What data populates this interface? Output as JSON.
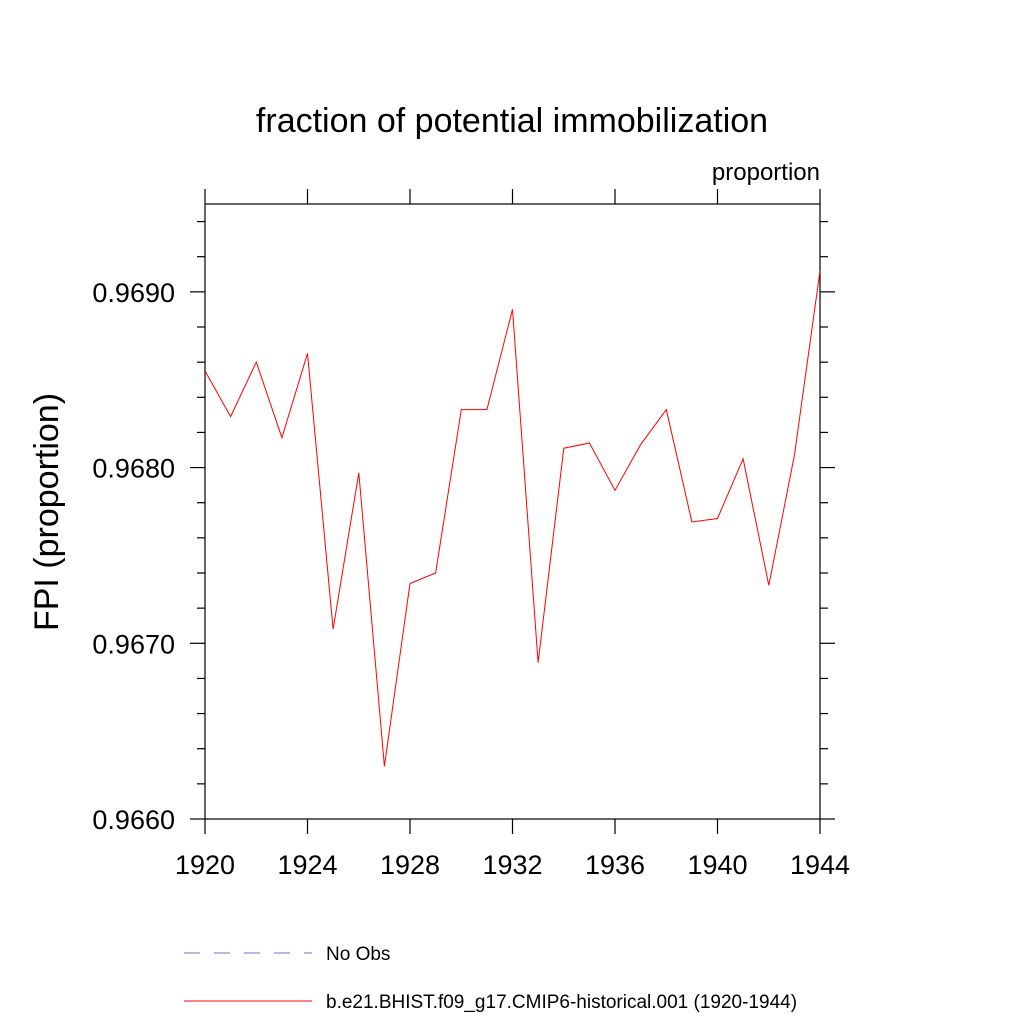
{
  "chart_data": {
    "type": "line",
    "title": "fraction of potential immobilization",
    "units_label": "proportion",
    "ylabel": "FPI  (proportion)",
    "xlabel": "",
    "xlim": [
      1920,
      1944
    ],
    "ylim": [
      0.966,
      0.9695
    ],
    "x_ticks": [
      1920,
      1924,
      1928,
      1932,
      1936,
      1940,
      1944
    ],
    "x_tick_labels": [
      "1920",
      "1924",
      "1928",
      "1932",
      "1936",
      "1940",
      "1944"
    ],
    "y_ticks": [
      0.966,
      0.967,
      0.968,
      0.969
    ],
    "y_tick_labels": [
      "0.9660",
      "0.9670",
      "0.9680",
      "0.9690"
    ],
    "grid": false,
    "legend_position": "bottom",
    "series": [
      {
        "name": "b.e21.BHIST.f09_g17.CMIP6-historical.001 (1920-1944)",
        "color": "#ff0000",
        "style": "solid",
        "x": [
          1920,
          1921,
          1922,
          1923,
          1924,
          1925,
          1926,
          1927,
          1928,
          1929,
          1930,
          1931,
          1932,
          1933,
          1934,
          1935,
          1936,
          1937,
          1938,
          1939,
          1940,
          1941,
          1942,
          1943,
          1944
        ],
        "values": [
          0.96855,
          0.96829,
          0.9686,
          0.96817,
          0.96865,
          0.96708,
          0.96797,
          0.9663,
          0.96734,
          0.9674,
          0.96833,
          0.96833,
          0.9689,
          0.96689,
          0.96811,
          0.96814,
          0.96787,
          0.96813,
          0.96833,
          0.96769,
          0.96771,
          0.96805,
          0.96733,
          0.96807,
          0.96912
        ]
      }
    ],
    "legend": [
      {
        "label": "No Obs",
        "color": "#7070d0",
        "style": "dashed"
      },
      {
        "label": "b.e21.BHIST.f09_g17.CMIP6-historical.001 (1920-1944)",
        "color": "#ff0000",
        "style": "solid"
      }
    ]
  }
}
